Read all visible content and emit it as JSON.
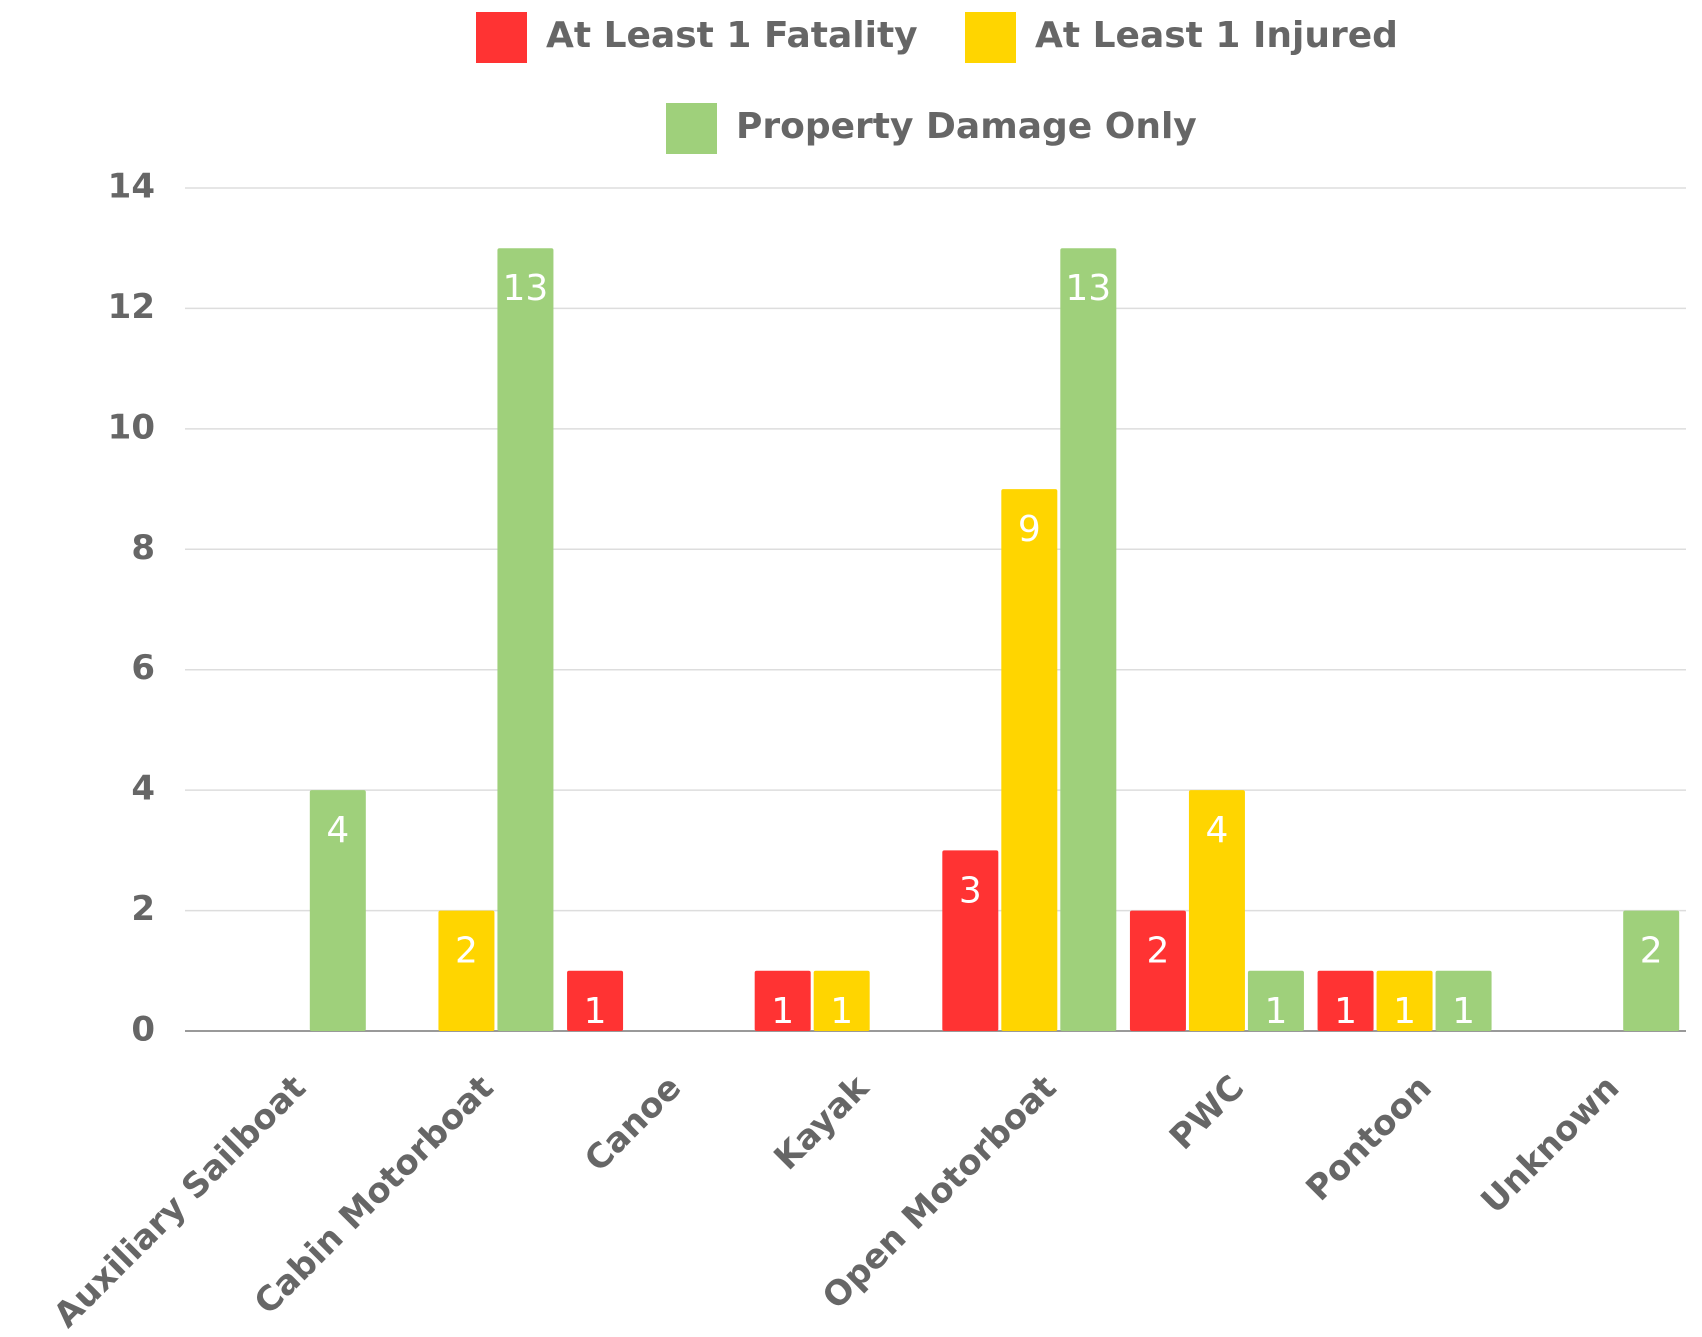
{
  "chart_data": {
    "type": "bar",
    "categories": [
      "Auxiliary Sailboat",
      "Cabin Motorboat",
      "Canoe",
      "Kayak",
      "Open Motorboat",
      "PWC",
      "Pontoon",
      "Unknown"
    ],
    "series": [
      {
        "name": "At Least 1 Fatality",
        "color": "#ff3333",
        "values": [
          null,
          null,
          1,
          1,
          3,
          2,
          1,
          null
        ]
      },
      {
        "name": "At Least 1 Injured",
        "color": "#ffd500",
        "values": [
          null,
          2,
          null,
          1,
          9,
          4,
          1,
          null
        ]
      },
      {
        "name": "Property Damage Only",
        "color": "#9fd07b",
        "values": [
          4,
          13,
          null,
          null,
          13,
          1,
          1,
          2
        ]
      }
    ],
    "ylim": [
      0,
      14
    ],
    "yticks": [
      0,
      2,
      4,
      6,
      8,
      10,
      12,
      14
    ],
    "grid": true,
    "legend": "top"
  }
}
